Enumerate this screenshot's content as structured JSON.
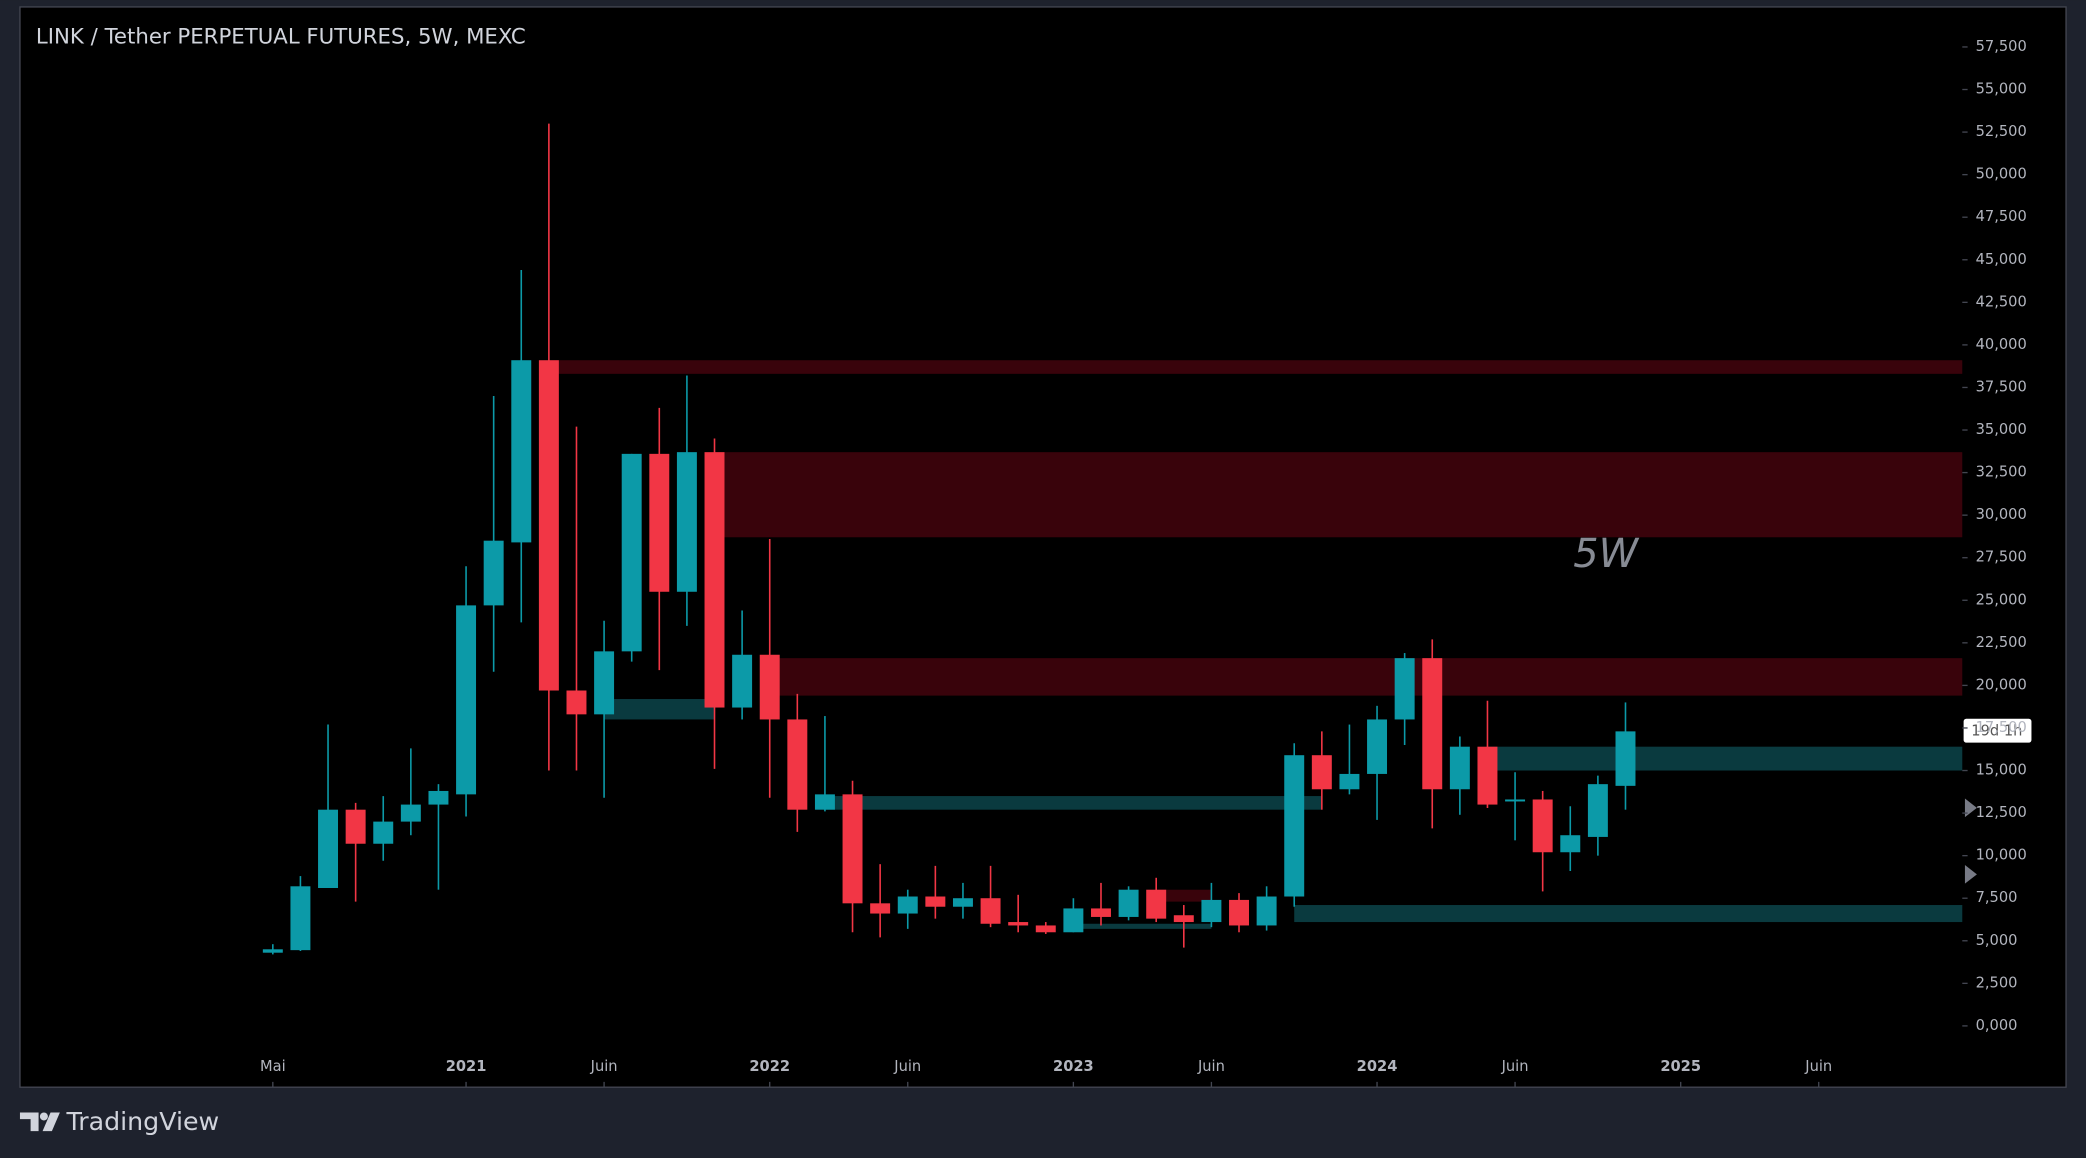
{
  "chart_data": {
    "type": "candlestick",
    "title": "LINK / Tether PERPETUAL FUTURES, 5W, MEXC",
    "watermark": "5W",
    "countdown": "19d 1h",
    "brand": "TradingView",
    "up_color": "#0c9aa8",
    "down_color": "#f23645",
    "zone_colors": {
      "red": "#39030b",
      "teal": "#0a3a3f"
    },
    "open": [
      4300,
      4450,
      8100,
      12700,
      10700,
      12000,
      13000,
      13600,
      24700,
      28400,
      39100,
      19700,
      18300,
      22000,
      33600,
      25500,
      33700,
      18700,
      21800,
      18000,
      12700,
      13600,
      7200,
      6600,
      7600,
      7000,
      7500,
      6100,
      5900,
      5500,
      6900,
      6400,
      8000,
      6500,
      6100,
      7400,
      5900,
      7600,
      15900,
      13900,
      14800,
      18000,
      21600,
      13900,
      16400,
      13200,
      13300,
      10200,
      11100,
      14100
    ],
    "high": [
      4800,
      8800,
      17700,
      13100,
      13500,
      16300,
      14200,
      27000,
      37000,
      44400,
      53000,
      35200,
      23800,
      33600,
      36300,
      38200,
      34500,
      24400,
      28600,
      19500,
      18200,
      14400,
      9500,
      8000,
      9400,
      8400,
      9400,
      7700,
      6100,
      7500,
      8400,
      8200,
      8700,
      7100,
      8400,
      7800,
      8200,
      16600,
      17300,
      17700,
      18800,
      21900,
      22700,
      17000,
      19100,
      14900,
      13800,
      12900,
      14700,
      19000
    ],
    "low": [
      4200,
      4400,
      8100,
      7300,
      9700,
      11200,
      8000,
      12300,
      20800,
      23700,
      15000,
      15000,
      13400,
      21400,
      20900,
      23500,
      15100,
      18000,
      13400,
      11400,
      12600,
      5500,
      5200,
      5700,
      6300,
      6300,
      5800,
      5500,
      5400,
      5500,
      5900,
      6200,
      6100,
      4600,
      5800,
      5500,
      5600,
      7000,
      12700,
      13600,
      12100,
      16500,
      11600,
      12400,
      12800,
      10900,
      7900,
      9100,
      10000,
      12700
    ],
    "close": [
      4500,
      8200,
      12700,
      10700,
      12000,
      13000,
      13800,
      24700,
      28500,
      39100,
      19700,
      18300,
      22000,
      33600,
      25500,
      33700,
      18700,
      21800,
      18000,
      12700,
      13600,
      7200,
      6600,
      7600,
      7000,
      7500,
      6000,
      5900,
      5500,
      6900,
      6400,
      8000,
      6300,
      6100,
      7400,
      5900,
      7600,
      15900,
      13900,
      14800,
      18000,
      21600,
      13900,
      16400,
      13000,
      13300,
      10200,
      11200,
      14200,
      17300
    ],
    "zones": [
      {
        "color": "red",
        "low": 38300,
        "high": 39100,
        "from": 10
      },
      {
        "color": "red",
        "low": 28700,
        "high": 33700,
        "from": 16
      },
      {
        "color": "red",
        "low": 19400,
        "high": 21600,
        "from": 18
      },
      {
        "color": "teal",
        "low": 18000,
        "high": 19200,
        "from": 12,
        "to": 16
      },
      {
        "color": "teal",
        "low": 12700,
        "high": 13500,
        "from": 20,
        "to": 38
      },
      {
        "color": "teal",
        "low": 6100,
        "high": 7100,
        "from": 37
      },
      {
        "color": "teal",
        "low": 15000,
        "high": 16400,
        "from": 44
      },
      {
        "color": "teal",
        "low": 5700,
        "high": 6000,
        "from": 29,
        "to": 34
      },
      {
        "color": "red",
        "low": 7300,
        "high": 8000,
        "from": 32,
        "to": 34
      }
    ],
    "xlim": [
      -9.16,
      61.2
    ],
    "xticks": [
      {
        "value": 0,
        "label": "Mai"
      },
      {
        "value": 7,
        "label": "2021"
      },
      {
        "value": 12,
        "label": "Juin"
      },
      {
        "value": 18,
        "label": "2022"
      },
      {
        "value": 23,
        "label": "Juin"
      },
      {
        "value": 29,
        "label": "2023"
      },
      {
        "value": 34,
        "label": "Juin"
      },
      {
        "value": 40,
        "label": "2024"
      },
      {
        "value": 45,
        "label": "Juin"
      },
      {
        "value": 51,
        "label": "2025"
      },
      {
        "value": 56,
        "label": "Juin"
      }
    ],
    "ylim": [
      -3600,
      59850
    ],
    "yticks": [
      {
        "value": 0,
        "label": "0,000"
      },
      {
        "value": 2500,
        "label": "2,500"
      },
      {
        "value": 5000,
        "label": "5,000"
      },
      {
        "value": 7500,
        "label": "7,500"
      },
      {
        "value": 10000,
        "label": "10,000"
      },
      {
        "value": 12500,
        "label": "12,500"
      },
      {
        "value": 15000,
        "label": "15,000"
      },
      {
        "value": 17500,
        "label": "17,500"
      },
      {
        "value": 20000,
        "label": "20,000"
      },
      {
        "value": 22500,
        "label": "22,500"
      },
      {
        "value": 25000,
        "label": "25,000"
      },
      {
        "value": 27500,
        "label": "27,500"
      },
      {
        "value": 30000,
        "label": "30,000"
      },
      {
        "value": 32500,
        "label": "32,500"
      },
      {
        "value": 35000,
        "label": "35,000"
      },
      {
        "value": 37500,
        "label": "37,500"
      },
      {
        "value": 40000,
        "label": "40,000"
      },
      {
        "value": 42500,
        "label": "42,500"
      },
      {
        "value": 45000,
        "label": "45,000"
      },
      {
        "value": 47500,
        "label": "47,500"
      },
      {
        "value": 50000,
        "label": "50,000"
      },
      {
        "value": 52500,
        "label": "52,500"
      },
      {
        "value": 55000,
        "label": "55,000"
      },
      {
        "value": 57500,
        "label": "57,500"
      }
    ]
  }
}
